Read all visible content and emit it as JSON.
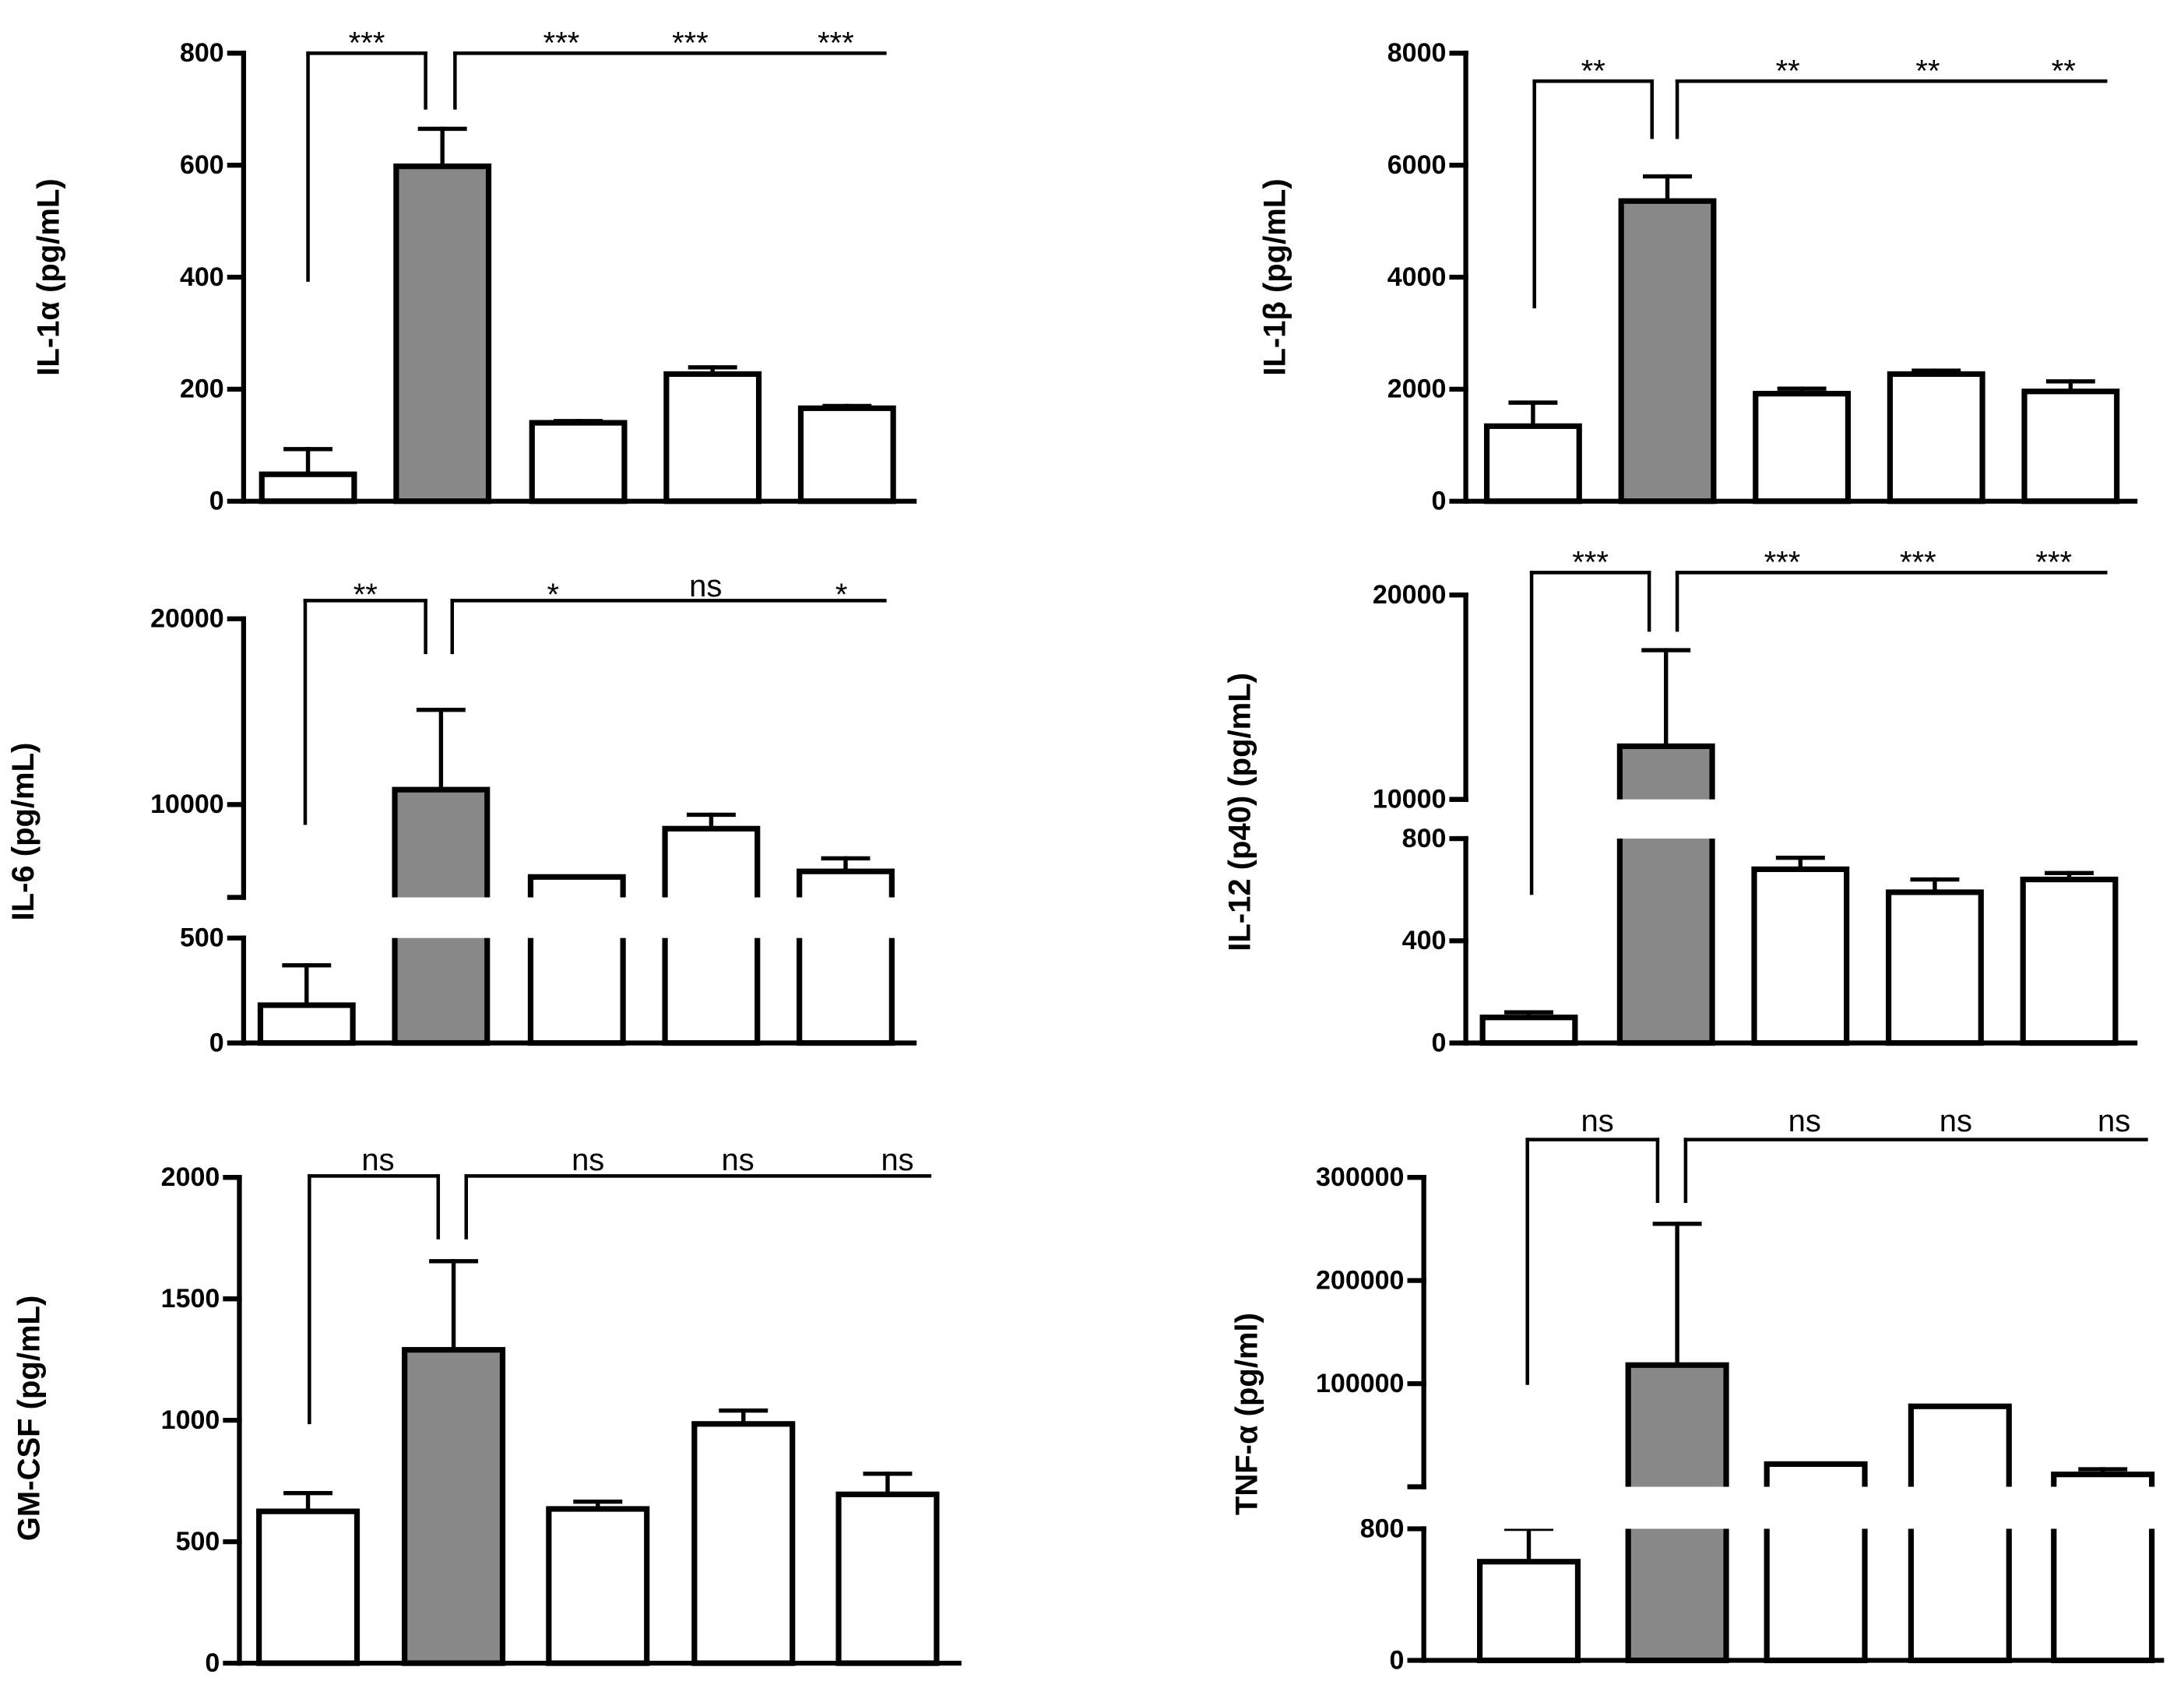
{
  "style": {
    "bar_fill_highlight": "#888888",
    "bar_fill": "#ffffff",
    "stroke": "#000000"
  },
  "chart_data": [
    {
      "type": "bar",
      "ylabel": "IL-1α (pg/mL)",
      "ylim": [
        0,
        800
      ],
      "yticks": [
        "0",
        "200",
        "400",
        "600",
        "800"
      ],
      "values": [
        48,
        598,
        140,
        227,
        166
      ],
      "errors": [
        45,
        67,
        3,
        12,
        4
      ],
      "highlight": 1,
      "significance": [
        "***",
        "***",
        "***",
        "***"
      ]
    },
    {
      "type": "bar",
      "ylabel": "IL-1β (pg/mL)",
      "ylim": [
        0,
        8000
      ],
      "yticks": [
        "0",
        "2000",
        "4000",
        "6000",
        "8000"
      ],
      "values": [
        1340,
        5360,
        1920,
        2270,
        1960
      ],
      "errors": [
        420,
        440,
        90,
        60,
        180
      ],
      "highlight": 1,
      "significance": [
        "**",
        "**",
        "**",
        "**"
      ]
    },
    {
      "type": "bar",
      "ylabel": "IL-6 (pg/mL)",
      "axis_break": true,
      "ylim_lower": [
        0,
        500
      ],
      "yticks_lower": [
        "0",
        "500"
      ],
      "ylim_upper": [
        5000,
        20000
      ],
      "yticks_upper": [
        "10000",
        "20000"
      ],
      "values": [
        180,
        10800,
        6100,
        8700,
        6400
      ],
      "errors": [
        190,
        4300,
        0,
        750,
        700
      ],
      "highlight": 1,
      "significance": [
        "**",
        "*",
        "ns",
        "*"
      ]
    },
    {
      "type": "bar",
      "ylabel": "IL-12 (p40) (pg/mL)",
      "axis_break": true,
      "ylim_lower": [
        0,
        800
      ],
      "yticks_lower": [
        "0",
        "400",
        "800"
      ],
      "ylim_upper": [
        10000,
        20000
      ],
      "yticks_upper": [
        "10000",
        "20000"
      ],
      "values": [
        100,
        12600,
        680,
        590,
        640
      ],
      "errors": [
        20,
        4700,
        45,
        50,
        25
      ],
      "highlight": 1,
      "significance": [
        "***",
        "***",
        "***",
        "***"
      ]
    },
    {
      "type": "bar",
      "ylabel": "GM-CSF (pg/mL)",
      "ylim": [
        0,
        2000
      ],
      "yticks": [
        "0",
        "500",
        "1000",
        "1500",
        "2000"
      ],
      "values": [
        625,
        1290,
        635,
        985,
        695
      ],
      "errors": [
        75,
        365,
        30,
        55,
        85
      ],
      "highlight": 1,
      "significance": [
        "ns",
        "ns",
        "ns",
        "ns"
      ]
    },
    {
      "type": "bar",
      "ylabel": "TNF-α (pg/ml)",
      "axis_break": true,
      "ylim_lower": [
        0,
        800
      ],
      "yticks_lower": [
        "0",
        "800"
      ],
      "ylim_upper": [
        0,
        300000
      ],
      "yticks_upper": [
        "100000",
        "200000",
        "300000"
      ],
      "values": [
        600,
        118000,
        22000,
        78000,
        12000
      ],
      "errors": [
        200,
        137000,
        0,
        0,
        5000
      ],
      "highlight": 1,
      "significance": [
        "ns",
        "ns",
        "ns",
        "ns"
      ]
    }
  ]
}
